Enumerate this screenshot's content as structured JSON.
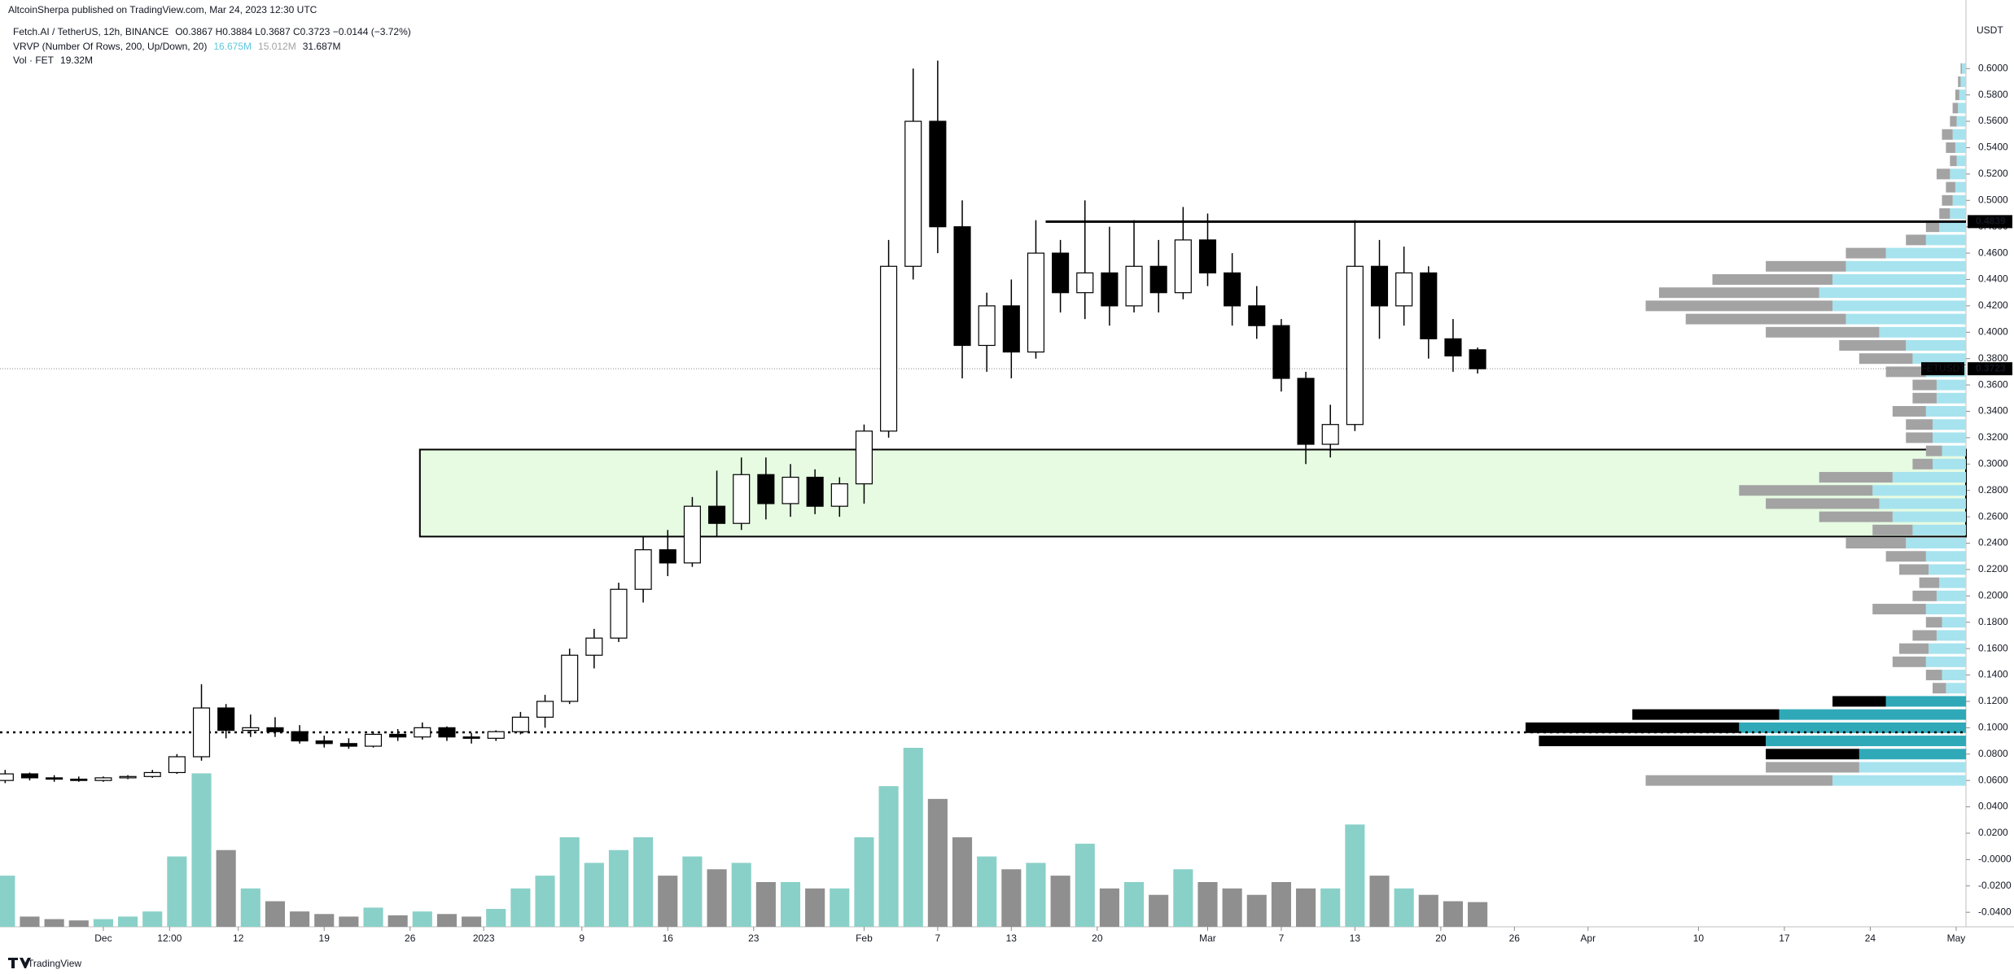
{
  "header": {
    "publisher": "AltcoinSherpa published on TradingView.com, Mar 24, 2023 12:30 UTC",
    "symbol": "Fetch.AI / TetherUS, 12h, BINANCE",
    "ohlc": "O0.3867 H0.3884 L0.3687 C0.3723 −0.0144 (−3.72%)",
    "vrvp": "VRVP (Number Of Rows, 200, Up/Down, 20)",
    "vrvp_up": "16.675M",
    "vrvp_down": "15.012M",
    "vrvp_total": "31.687M",
    "vol": "Vol · FET",
    "vol_value": "19.32M"
  },
  "footer": {
    "brand": "TradingView"
  },
  "chart_data": {
    "type": "candlestick",
    "y_unit": "USDT",
    "up_color": "#ffffff",
    "down_color": "#000000",
    "wick_color": "#000000",
    "volume_up_color": "#89d0c8",
    "volume_down_color": "#8f8f8f",
    "xlim": [
      -0.21,
      79.9
    ],
    "ylim": [
      -0.051,
      0.652
    ],
    "grid": false,
    "xticks": [
      {
        "value": 4,
        "label": "Dec"
      },
      {
        "value": 6.7,
        "label": "12:00"
      },
      {
        "value": 9.5,
        "label": "12"
      },
      {
        "value": 13,
        "label": "19"
      },
      {
        "value": 16.5,
        "label": "26"
      },
      {
        "value": 19.5,
        "label": "2023"
      },
      {
        "value": 23.5,
        "label": "9"
      },
      {
        "value": 27,
        "label": "16"
      },
      {
        "value": 30.5,
        "label": "23"
      },
      {
        "value": 35,
        "label": "Feb"
      },
      {
        "value": 38,
        "label": "7"
      },
      {
        "value": 41,
        "label": "13"
      },
      {
        "value": 44.5,
        "label": "20"
      },
      {
        "value": 49,
        "label": "Mar"
      },
      {
        "value": 52,
        "label": "7"
      },
      {
        "value": 55,
        "label": "13"
      },
      {
        "value": 58.5,
        "label": "20"
      },
      {
        "value": 61.5,
        "label": "26"
      },
      {
        "value": 64.5,
        "label": "Apr"
      },
      {
        "value": 69,
        "label": "10"
      },
      {
        "value": 72.5,
        "label": "17"
      },
      {
        "value": 76,
        "label": "24"
      },
      {
        "value": 79.5,
        "label": "May"
      }
    ],
    "yticks": [
      {
        "value": -0.04,
        "label": "-0.0400"
      },
      {
        "value": -0.02,
        "label": "-0.0200"
      },
      {
        "value": 0,
        "label": "-0.0000"
      },
      {
        "value": 0.02,
        "label": "0.0200"
      },
      {
        "value": 0.04,
        "label": "0.0400"
      },
      {
        "value": 0.06,
        "label": "0.0600"
      },
      {
        "value": 0.08,
        "label": "0.0800"
      },
      {
        "value": 0.1,
        "label": "0.1000"
      },
      {
        "value": 0.12,
        "label": "0.1200"
      },
      {
        "value": 0.14,
        "label": "0.1400"
      },
      {
        "value": 0.16,
        "label": "0.1600"
      },
      {
        "value": 0.18,
        "label": "0.1800"
      },
      {
        "value": 0.2,
        "label": "0.2000"
      },
      {
        "value": 0.22,
        "label": "0.2200"
      },
      {
        "value": 0.24,
        "label": "0.2400"
      },
      {
        "value": 0.26,
        "label": "0.2600"
      },
      {
        "value": 0.28,
        "label": "0.2800"
      },
      {
        "value": 0.3,
        "label": "0.3000"
      },
      {
        "value": 0.32,
        "label": "0.3200"
      },
      {
        "value": 0.34,
        "label": "0.3400"
      },
      {
        "value": 0.36,
        "label": "0.3600"
      },
      {
        "value": 0.38,
        "label": "0.3800"
      },
      {
        "value": 0.4,
        "label": "0.4000"
      },
      {
        "value": 0.42,
        "label": "0.4200"
      },
      {
        "value": 0.44,
        "label": "0.4400"
      },
      {
        "value": 0.46,
        "label": "0.4600"
      },
      {
        "value": 0.48,
        "label": "0.4800"
      },
      {
        "value": 0.5,
        "label": "0.5000"
      },
      {
        "value": 0.52,
        "label": "0.5200"
      },
      {
        "value": 0.54,
        "label": "0.5400"
      },
      {
        "value": 0.56,
        "label": "0.5600"
      },
      {
        "value": 0.58,
        "label": "0.5800"
      },
      {
        "value": 0.6,
        "label": "0.6000"
      }
    ],
    "candles": {
      "open": [
        0.06,
        0.065,
        0.062,
        0.061,
        0.06,
        0.062,
        0.063,
        0.066,
        0.078,
        0.115,
        0.098,
        0.1,
        0.097,
        0.09,
        0.088,
        0.086,
        0.095,
        0.093,
        0.1,
        0.093,
        0.092,
        0.097,
        0.108,
        0.12,
        0.155,
        0.168,
        0.205,
        0.235,
        0.225,
        0.268,
        0.255,
        0.292,
        0.27,
        0.29,
        0.268,
        0.285,
        0.325,
        0.45,
        0.56,
        0.48,
        0.39,
        0.42,
        0.385,
        0.46,
        0.43,
        0.445,
        0.42,
        0.45,
        0.43,
        0.47,
        0.445,
        0.42,
        0.405,
        0.365,
        0.315,
        0.33,
        0.45,
        0.42,
        0.445,
        0.395,
        0.3867
      ],
      "high": [
        0.068,
        0.066,
        0.064,
        0.063,
        0.063,
        0.064,
        0.068,
        0.08,
        0.133,
        0.118,
        0.11,
        0.108,
        0.102,
        0.094,
        0.092,
        0.097,
        0.099,
        0.104,
        0.101,
        0.096,
        0.098,
        0.112,
        0.125,
        0.16,
        0.175,
        0.21,
        0.245,
        0.25,
        0.275,
        0.295,
        0.305,
        0.305,
        0.3,
        0.296,
        0.29,
        0.33,
        0.47,
        0.6,
        0.606,
        0.5,
        0.43,
        0.44,
        0.485,
        0.47,
        0.5,
        0.48,
        0.485,
        0.47,
        0.495,
        0.49,
        0.46,
        0.435,
        0.41,
        0.37,
        0.345,
        0.485,
        0.47,
        0.465,
        0.45,
        0.41,
        0.3884
      ],
      "low": [
        0.058,
        0.06,
        0.059,
        0.059,
        0.059,
        0.061,
        0.062,
        0.065,
        0.075,
        0.092,
        0.093,
        0.093,
        0.088,
        0.085,
        0.084,
        0.085,
        0.09,
        0.091,
        0.09,
        0.088,
        0.09,
        0.095,
        0.1,
        0.118,
        0.145,
        0.165,
        0.195,
        0.215,
        0.222,
        0.245,
        0.25,
        0.258,
        0.26,
        0.262,
        0.26,
        0.27,
        0.32,
        0.44,
        0.46,
        0.365,
        0.37,
        0.365,
        0.38,
        0.415,
        0.41,
        0.405,
        0.415,
        0.415,
        0.425,
        0.435,
        0.405,
        0.395,
        0.355,
        0.3,
        0.305,
        0.325,
        0.395,
        0.405,
        0.38,
        0.37,
        0.3687
      ],
      "close": [
        0.065,
        0.062,
        0.061,
        0.06,
        0.062,
        0.063,
        0.066,
        0.078,
        0.115,
        0.098,
        0.1,
        0.097,
        0.09,
        0.088,
        0.086,
        0.095,
        0.093,
        0.1,
        0.093,
        0.092,
        0.097,
        0.108,
        0.12,
        0.155,
        0.168,
        0.205,
        0.235,
        0.225,
        0.268,
        0.255,
        0.292,
        0.27,
        0.29,
        0.268,
        0.285,
        0.325,
        0.45,
        0.56,
        0.48,
        0.39,
        0.42,
        0.385,
        0.46,
        0.43,
        0.445,
        0.42,
        0.45,
        0.43,
        0.47,
        0.445,
        0.42,
        0.405,
        0.365,
        0.315,
        0.33,
        0.45,
        0.42,
        0.445,
        0.395,
        0.382,
        0.3723
      ]
    },
    "volume": [
      40,
      8,
      6,
      5,
      6,
      8,
      12,
      55,
      120,
      60,
      30,
      20,
      12,
      10,
      8,
      15,
      9,
      12,
      10,
      8,
      14,
      30,
      40,
      70,
      50,
      60,
      70,
      40,
      55,
      45,
      50,
      35,
      35,
      30,
      30,
      70,
      110,
      140,
      100,
      70,
      55,
      45,
      50,
      40,
      65,
      30,
      35,
      25,
      45,
      35,
      30,
      25,
      35,
      30,
      30,
      80,
      40,
      30,
      25,
      20,
      19.32
    ],
    "vrvp": {
      "up_color": "#a6e3ee",
      "down_color": "#a3a3a3",
      "value_area_up_color": "#2fa9b8",
      "value_area_down_color": "#000000",
      "value_area": [
        0.075,
        0.125
      ],
      "prices": [
        0.06,
        0.07,
        0.08,
        0.09,
        0.1,
        0.11,
        0.12,
        0.13,
        0.14,
        0.15,
        0.16,
        0.17,
        0.18,
        0.19,
        0.2,
        0.21,
        0.22,
        0.23,
        0.24,
        0.25,
        0.26,
        0.27,
        0.28,
        0.29,
        0.3,
        0.31,
        0.32,
        0.33,
        0.34,
        0.35,
        0.36,
        0.37,
        0.38,
        0.39,
        0.4,
        0.41,
        0.42,
        0.43,
        0.44,
        0.45,
        0.46,
        0.47,
        0.48,
        0.49,
        0.5,
        0.51,
        0.52,
        0.53,
        0.54,
        0.55,
        0.56,
        0.57,
        0.58,
        0.59,
        0.6
      ],
      "up": [
        100,
        80,
        80,
        150,
        170,
        140,
        60,
        15,
        18,
        30,
        28,
        22,
        18,
        30,
        22,
        20,
        28,
        30,
        45,
        40,
        55,
        65,
        70,
        55,
        25,
        18,
        25,
        25,
        30,
        22,
        22,
        30,
        40,
        45,
        65,
        90,
        100,
        110,
        100,
        90,
        60,
        30,
        20,
        12,
        10,
        8,
        12,
        7,
        8,
        10,
        7,
        6,
        5,
        4,
        3
      ],
      "down": [
        140,
        70,
        70,
        170,
        160,
        110,
        40,
        10,
        12,
        25,
        22,
        18,
        12,
        40,
        18,
        15,
        22,
        30,
        45,
        30,
        55,
        85,
        100,
        55,
        15,
        12,
        20,
        20,
        25,
        18,
        18,
        30,
        40,
        50,
        85,
        120,
        140,
        120,
        90,
        60,
        30,
        15,
        10,
        8,
        8,
        7,
        10,
        5,
        7,
        8,
        5,
        4,
        3,
        2,
        1
      ]
    },
    "annotations": {
      "resistance": {
        "value": 0.4839,
        "label": "0.4839",
        "x_start": 42.4
      },
      "zone": {
        "ylim": [
          0.245,
          0.311
        ],
        "x_start": 16.9,
        "color": "#e6fbe2"
      },
      "support": 0.0965
    },
    "last_price": {
      "symbol": "FETUSDT",
      "value": 0.3723,
      "label": "0.3723"
    }
  }
}
